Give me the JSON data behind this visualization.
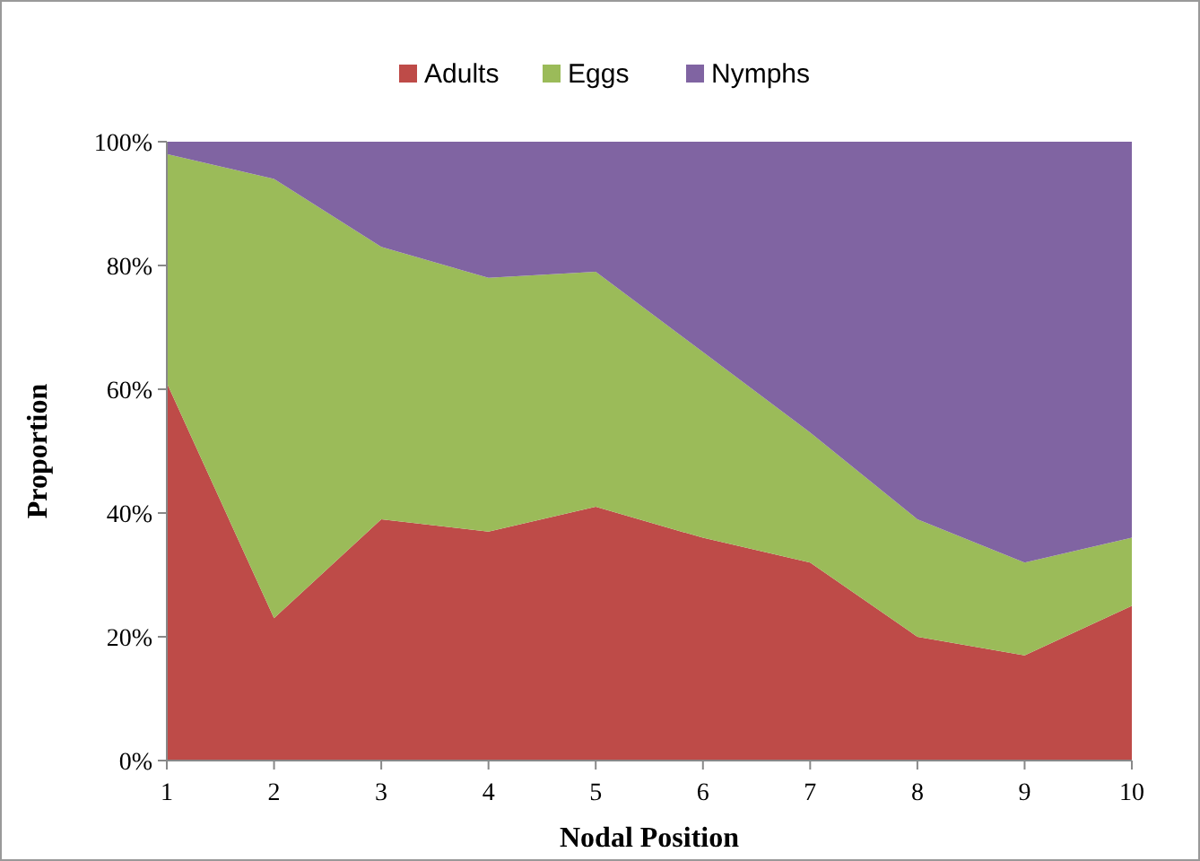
{
  "chart_data": {
    "type": "area",
    "stacked": true,
    "xlabel": "Nodal Position",
    "ylabel": "Proportion",
    "x": [
      1,
      2,
      3,
      4,
      5,
      6,
      7,
      8,
      9,
      10
    ],
    "xlim": [
      1,
      10
    ],
    "xticks": [
      1,
      2,
      3,
      4,
      5,
      6,
      7,
      8,
      9,
      10
    ],
    "ylim": [
      0,
      100
    ],
    "yticks": [
      {
        "value": 0,
        "label": "0%"
      },
      {
        "value": 20,
        "label": "20%"
      },
      {
        "value": 40,
        "label": "40%"
      },
      {
        "value": 60,
        "label": "60%"
      },
      {
        "value": 80,
        "label": "80%"
      },
      {
        "value": 100,
        "label": "100%"
      }
    ],
    "grid": false,
    "legend": "top",
    "series": [
      {
        "name": "Adults",
        "color": "#be4b48",
        "values": [
          61,
          23,
          39,
          37,
          41,
          36,
          32,
          20,
          17,
          25
        ]
      },
      {
        "name": "Eggs",
        "color": "#9bbb59",
        "values": [
          37,
          71,
          44,
          41,
          38,
          30,
          21,
          19,
          15,
          11
        ]
      },
      {
        "name": "Nymphs",
        "color": "#8064a2",
        "values": [
          2,
          6,
          17,
          22,
          21,
          34,
          47,
          61,
          68,
          64
        ]
      }
    ]
  }
}
